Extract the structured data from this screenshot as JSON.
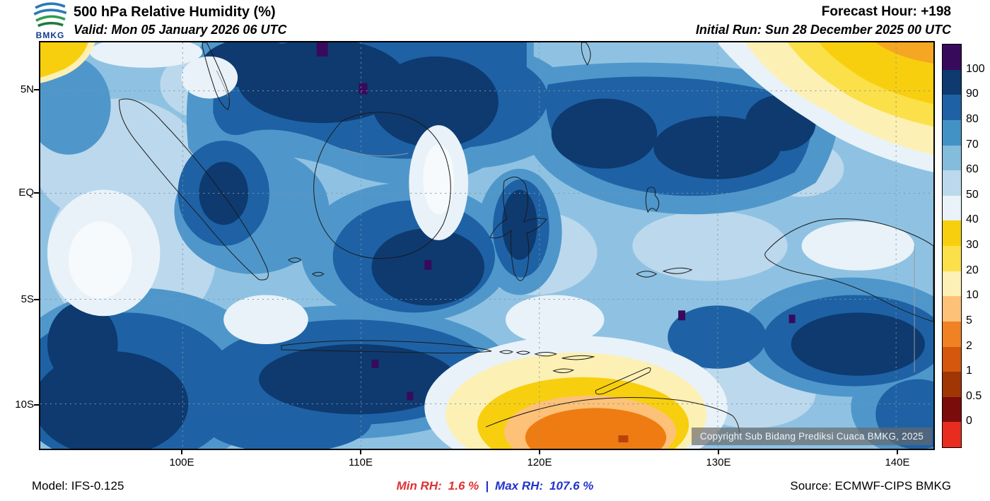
{
  "header": {
    "logo": "BMKG",
    "title": "500 hPa Relative Humidity (%)",
    "forecast_hour": "Forecast Hour: +198",
    "valid": "Valid: Mon 05 January 2026 06 UTC",
    "initial_run": "Initial Run: Sun 28 December 2025 00 UTC"
  },
  "map": {
    "y_ticks": [
      "5N",
      "EQ",
      "5S",
      "10S"
    ],
    "x_ticks": [
      "100E",
      "110E",
      "120E",
      "130E",
      "140E"
    ],
    "copyright": "Copyright Sub Bidang Prediksi Cuaca BMKG, 2025"
  },
  "footer": {
    "model": "Model: IFS-0.125",
    "min_label": "Min RH:",
    "min_value": "1.6 %",
    "separator": "|",
    "max_label": "Max RH:",
    "max_value": "107.6 %",
    "source": "Source: ECMWF-CIPS BMKG"
  },
  "chart_data": {
    "type": "heatmap",
    "title": "500 hPa Relative Humidity (%)",
    "variable": "Relative Humidity",
    "level": "500 hPa",
    "units": "%",
    "forecast_hour": "+198",
    "valid_time": "Mon 05 January 2026 06 UTC",
    "initial_run": "Sun 28 December 2025 00 UTC",
    "model": "IFS-0.125",
    "source": "ECMWF-CIPS BMKG",
    "min_rh_percent": 1.6,
    "max_rh_percent": 107.6,
    "x_axis": {
      "type": "longitude",
      "ticks": [
        "100E",
        "110E",
        "120E",
        "130E",
        "140E"
      ]
    },
    "y_axis": {
      "type": "latitude",
      "ticks": [
        "5N",
        "EQ",
        "5S",
        "10S"
      ]
    },
    "colorbar": {
      "orientation": "vertical-right",
      "tick_labels": [
        "100",
        "90",
        "80",
        "70",
        "60",
        "50",
        "40",
        "30",
        "20",
        "10",
        "5",
        "2",
        "1",
        "0.5",
        "0"
      ],
      "segment_colors_top_to_bottom": [
        "#380a5c",
        "#0e3a70",
        "#1e62a5",
        "#4292c6",
        "#84bcdc",
        "#bcd8ec",
        "#e9f2f9",
        "#f7cf0e",
        "#fbe04a",
        "#fdf0b4",
        "#fdc178",
        "#f08224",
        "#d4570d",
        "#a03603",
        "#7a0c0c",
        "#e82c20"
      ]
    }
  }
}
